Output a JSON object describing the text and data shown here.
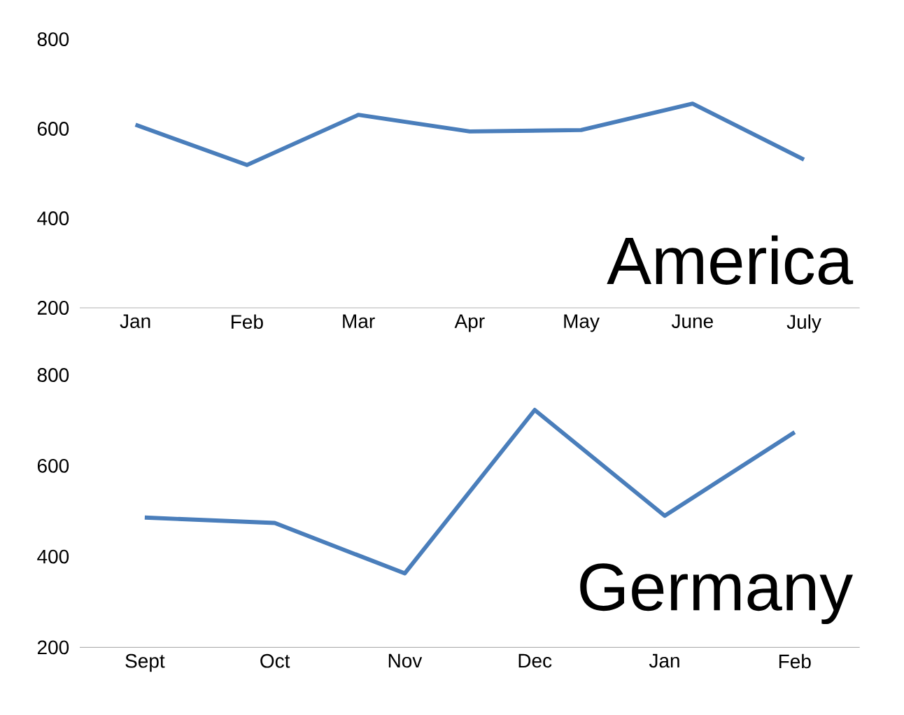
{
  "chart_data": [
    {
      "type": "line",
      "title": "America",
      "categories": [
        "Jan",
        "Feb",
        "Mar",
        "Apr",
        "May",
        "June",
        "July"
      ],
      "series": [
        {
          "color": "#4a7ebb",
          "values": [
            609,
            519,
            631,
            594,
            597,
            656,
            531
          ]
        }
      ],
      "ylim": [
        200,
        800
      ],
      "yticks": [
        200,
        400,
        600,
        800
      ],
      "grid": false,
      "marker": "none",
      "line_style": "solid"
    },
    {
      "type": "line",
      "title": "Germany",
      "categories": [
        "Sept",
        "Oct",
        "Nov",
        "Dec",
        "Jan",
        "Feb"
      ],
      "series": [
        {
          "color": "#4a7ebb",
          "values": [
            486,
            474,
            363,
            723,
            490,
            674
          ]
        }
      ],
      "ylim": [
        200,
        800
      ],
      "yticks": [
        200,
        400,
        600,
        800
      ],
      "grid": false,
      "marker": "none",
      "line_style": "solid"
    }
  ]
}
